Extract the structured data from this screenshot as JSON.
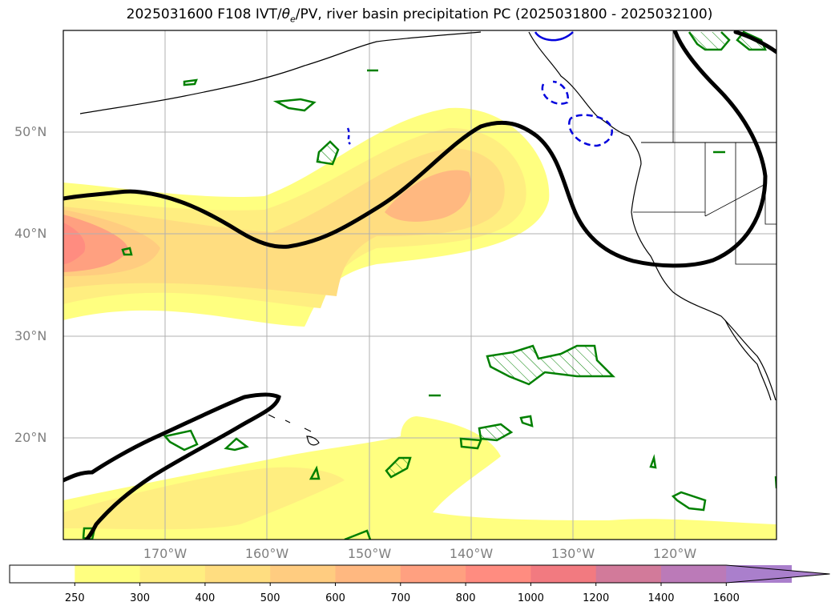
{
  "title_prefix": "2025031600 F108 IVT/",
  "title_theta": "θ",
  "title_sub": "e",
  "title_suffix": "/PV, river basin precipitation PC (2025031800 - 2025032100)",
  "lat_labels": [
    "50°N",
    "40°N",
    "30°N",
    "20°N"
  ],
  "lon_labels": [
    "170°W",
    "160°W",
    "150°W",
    "140°W",
    "130°W",
    "120°W"
  ],
  "colorbar": {
    "labels": [
      "250",
      "300",
      "400",
      "500",
      "600",
      "700",
      "800",
      "1000",
      "1200",
      "1400",
      "1600"
    ],
    "colors": [
      "#ffffff",
      "#ffff80",
      "#ffee80",
      "#ffdd80",
      "#ffcc80",
      "#ffb880",
      "#ffa080",
      "#ff8c80",
      "#f27a80",
      "#d27a9a",
      "#bb7ab8",
      "#aa7fcc"
    ],
    "extend_color": "#aa7fcc"
  },
  "colors": {
    "pv_contour": "#000000",
    "theta_contour": "#008000",
    "blue_contour": "#0000dd",
    "ivt_low": "#ffff80",
    "ivt_mid": "#ffd880",
    "ivt_high": "#ffb880",
    "ivt_core": "#ff8c80"
  }
}
